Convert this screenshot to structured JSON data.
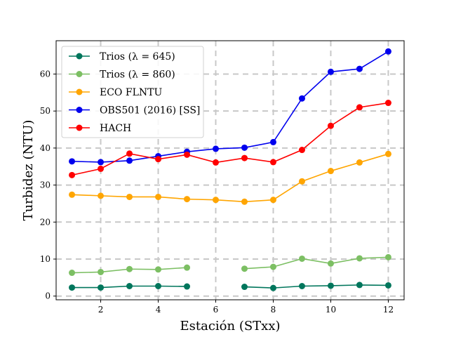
{
  "chart_data": {
    "type": "line",
    "xlabel": "Estación (STxx)",
    "ylabel": "Turbidez (NTU)",
    "xlim": [
      0.45,
      12.55
    ],
    "ylim": [
      -1,
      69
    ],
    "xticks": [
      2,
      4,
      6,
      8,
      10,
      12
    ],
    "yticks": [
      0,
      10,
      20,
      30,
      40,
      50,
      60
    ],
    "grid": true,
    "grid_lines_x": [
      2,
      4,
      6,
      8,
      10,
      12
    ],
    "grid_lines_y": [
      0,
      10,
      20,
      30,
      40,
      50,
      60
    ],
    "legend_position": "top-left",
    "series": [
      {
        "name": "Trios (λ = 645)",
        "color": "#00765c",
        "x": [
          1,
          2,
          3,
          4,
          5,
          7,
          8,
          9,
          10,
          11,
          12
        ],
        "values": [
          2.3,
          2.3,
          2.7,
          2.7,
          2.6,
          2.5,
          2.2,
          2.7,
          2.8,
          3.0,
          2.9
        ],
        "segments": [
          [
            0,
            4
          ],
          [
            5,
            10
          ]
        ]
      },
      {
        "name": "Trios (λ = 860)",
        "color": "#7cbf63",
        "x": [
          1,
          2,
          3,
          4,
          5,
          7,
          8,
          9,
          10,
          11,
          12
        ],
        "values": [
          6.3,
          6.5,
          7.3,
          7.2,
          7.7,
          7.4,
          7.9,
          10.1,
          8.8,
          10.2,
          10.5
        ],
        "segments": [
          [
            0,
            4
          ],
          [
            5,
            10
          ]
        ]
      },
      {
        "name": "ECO FLNTU",
        "color": "#ffa500",
        "x": [
          1,
          2,
          3,
          4,
          5,
          6,
          7,
          8,
          9,
          10,
          11,
          12
        ],
        "values": [
          27.4,
          27.1,
          26.8,
          26.8,
          26.2,
          26.0,
          25.5,
          26.0,
          31.0,
          33.8,
          36.1,
          38.4
        ],
        "segments": [
          [
            0,
            11
          ]
        ]
      },
      {
        "name": "OBS501 (2016) [SS]",
        "color": "#0000ee",
        "x": [
          1,
          2,
          3,
          4,
          5,
          6,
          7,
          8,
          9,
          10,
          11,
          12
        ],
        "values": [
          36.4,
          36.2,
          36.6,
          37.8,
          39.0,
          39.8,
          40.1,
          41.6,
          53.4,
          60.6,
          61.4,
          66.1
        ],
        "segments": [
          [
            0,
            11
          ]
        ]
      },
      {
        "name": "HACH",
        "color": "#ff0000",
        "x": [
          1,
          2,
          3,
          4,
          5,
          6,
          7,
          8,
          9,
          10,
          11,
          12
        ],
        "values": [
          32.7,
          34.4,
          38.5,
          37.0,
          38.2,
          36.1,
          37.3,
          36.2,
          39.5,
          46.0,
          51.0,
          52.2
        ],
        "segments": [
          [
            0,
            11
          ]
        ]
      }
    ]
  }
}
